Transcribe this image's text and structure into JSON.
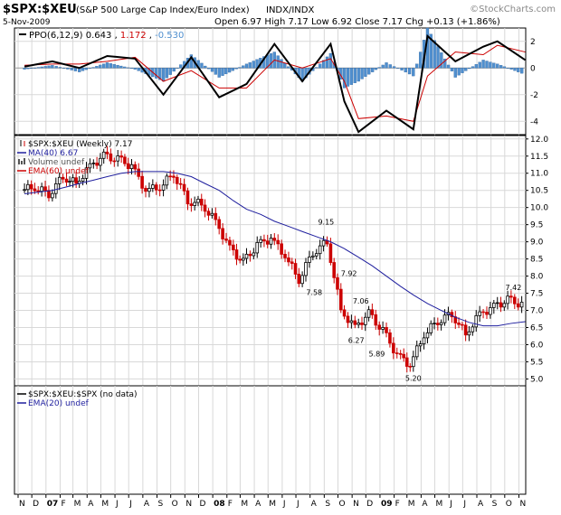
{
  "header": {
    "symbol": "$SPX:$XEU",
    "description": "(S&P 500 Large Cap Index/Euro Index)",
    "exchange": "INDX/INDX",
    "watermark": "©StockCharts.com",
    "date": "5-Nov-2009",
    "quote": "Open 6.97  High 7.17  Low 6.92  Close 7.17  Chg +0.13 (+1.86%)",
    "chg_arrow": "▲"
  },
  "ppo_panel": {
    "label_prefix": "PPO(6,12,9)",
    "value_ppo": "0.643",
    "value_signal": "1.172",
    "value_hist": "-0.530",
    "yticks": [
      "2",
      "0",
      "-2",
      "-4"
    ]
  },
  "main_panel": {
    "legend": [
      {
        "text": "$SPX:$XEU (Weekly) 7.17",
        "color": "#000000",
        "key": "bars"
      },
      {
        "text": "MA(40) 6.67",
        "color": "#1f1f9e",
        "key": "line"
      },
      {
        "text": "Volume undef",
        "color": "#555555",
        "key": "vol"
      },
      {
        "text": "EMA(60) undef",
        "color": "#cc0000",
        "key": "line"
      }
    ],
    "yticks": [
      "12.0",
      "11.5",
      "11.0",
      "10.5",
      "10.0",
      "9.5",
      "9.0",
      "8.5",
      "8.0",
      "7.5",
      "7.0",
      "6.5",
      "6.0",
      "5.5",
      "5.0"
    ],
    "annotations": [
      "9.15",
      "7.92",
      "7.06",
      "7.58",
      "6.27",
      "5.89",
      "5.20",
      "7.42"
    ]
  },
  "lower_panel": {
    "legend": [
      {
        "text": "$SPX:$XEU:$SPX (no data)",
        "color": "#000000"
      },
      {
        "text": "EMA(20) undef",
        "color": "#1f1f9e"
      }
    ]
  },
  "xaxis": {
    "labels": [
      "N",
      "D",
      "07",
      "F",
      "M",
      "A",
      "M",
      "J",
      "J",
      "A",
      "S",
      "O",
      "N",
      "D",
      "08",
      "F",
      "M",
      "A",
      "M",
      "J",
      "J",
      "A",
      "S",
      "O",
      "N",
      "D",
      "09",
      "F",
      "M",
      "A",
      "M",
      "J",
      "J",
      "A",
      "S",
      "O",
      "N"
    ],
    "bold": [
      "07",
      "08",
      "09"
    ]
  },
  "colors": {
    "up": "#000000",
    "down": "#cc0000",
    "ma": "#1f1f9e",
    "hist": "#4f8fcf",
    "grid": "#d8d8d8"
  },
  "chart_data": [
    {
      "type": "line",
      "title": "PPO(6,12,9)",
      "y_range": [
        -5,
        3
      ],
      "x": [
        "2006-11",
        "2007-01",
        "2007-03",
        "2007-05",
        "2007-07",
        "2007-09",
        "2007-11",
        "2008-01",
        "2008-03",
        "2008-05",
        "2008-07",
        "2008-09",
        "2008-10",
        "2008-11",
        "2009-01",
        "2009-03",
        "2009-04",
        "2009-06",
        "2009-08",
        "2009-09",
        "2009-11"
      ],
      "series": [
        {
          "name": "PPO",
          "values": [
            0.1,
            0.5,
            0.0,
            0.9,
            0.7,
            -2.0,
            0.8,
            -2.2,
            -1.2,
            1.8,
            -1.0,
            1.8,
            -2.5,
            -4.8,
            -3.2,
            -4.6,
            2.4,
            0.5,
            1.6,
            2.0,
            0.6
          ]
        },
        {
          "name": "Signal",
          "values": [
            0.2,
            0.3,
            0.3,
            0.5,
            0.8,
            -1.0,
            -0.2,
            -1.5,
            -1.5,
            0.6,
            0.0,
            0.7,
            -1.0,
            -3.8,
            -3.6,
            -4.0,
            -0.6,
            1.2,
            1.0,
            1.7,
            1.2
          ]
        },
        {
          "name": "Histogram",
          "values": [
            -0.1,
            0.2,
            -0.3,
            0.4,
            -0.1,
            -1.0,
            1.0,
            -0.7,
            0.3,
            1.2,
            -1.0,
            1.1,
            -1.5,
            -1.0,
            0.4,
            -0.6,
            3.0,
            -0.7,
            0.6,
            0.3,
            -0.5
          ]
        }
      ]
    },
    {
      "type": "line",
      "title": "$SPX:$XEU (Weekly) 7.17",
      "y_range": [
        4.8,
        12.1
      ],
      "x": [
        "2006-11",
        "2006-12",
        "2007-01",
        "2007-02",
        "2007-03",
        "2007-04",
        "2007-05",
        "2007-06",
        "2007-07",
        "2007-08",
        "2007-09",
        "2007-10",
        "2007-11",
        "2007-12",
        "2008-01",
        "2008-02",
        "2008-03",
        "2008-04",
        "2008-05",
        "2008-06",
        "2008-07",
        "2008-08",
        "2008-09",
        "2008-10",
        "2008-11",
        "2008-12",
        "2009-01",
        "2009-02",
        "2009-03",
        "2009-04",
        "2009-05",
        "2009-06",
        "2009-07",
        "2009-08",
        "2009-09",
        "2009-10",
        "2009-11"
      ],
      "series": [
        {
          "name": "$SPX:$XEU",
          "values": [
            10.5,
            10.6,
            10.4,
            10.9,
            10.7,
            11.2,
            11.5,
            11.4,
            11.2,
            10.5,
            10.6,
            11.0,
            10.2,
            10.1,
            9.6,
            8.8,
            8.4,
            8.9,
            9.1,
            8.6,
            7.9,
            8.7,
            9.0,
            7.0,
            6.5,
            6.9,
            6.4,
            5.7,
            5.4,
            6.3,
            6.7,
            6.9,
            6.3,
            6.9,
            7.1,
            7.3,
            7.17
          ]
        },
        {
          "name": "MA(40)",
          "values": [
            10.4,
            10.45,
            10.5,
            10.6,
            10.7,
            10.8,
            10.9,
            11.0,
            11.05,
            11.05,
            11.05,
            11.0,
            10.9,
            10.7,
            10.5,
            10.2,
            9.95,
            9.8,
            9.6,
            9.45,
            9.3,
            9.15,
            9.0,
            8.8,
            8.55,
            8.3,
            8.0,
            7.7,
            7.45,
            7.2,
            7.0,
            6.8,
            6.65,
            6.55,
            6.55,
            6.62,
            6.67
          ]
        }
      ]
    }
  ]
}
